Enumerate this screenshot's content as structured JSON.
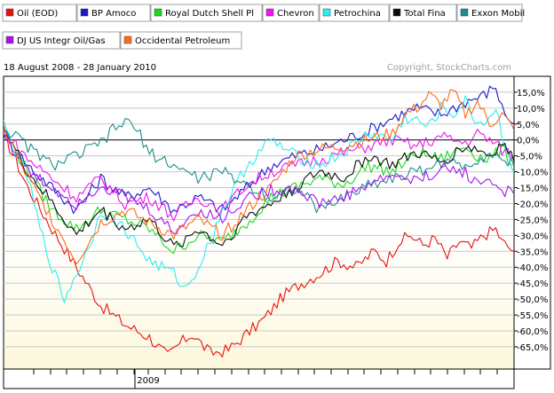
{
  "chart_data": {
    "type": "line",
    "date_range": "18 August 2008 - 28 January 2010",
    "copyright": "Copyright, StockCharts.com",
    "x_label": "2009",
    "y_ticks": [
      "15,0%",
      "10,0%",
      "5,0%",
      "0,0%",
      "-5,0%",
      "-10,0%",
      "-15,0%",
      "-20,0%",
      "-25,0%",
      "-30,0%",
      "-35,0%",
      "-40,0%",
      "-45,0%",
      "-50,0%",
      "-55,0%",
      "-60,0%",
      "-65,0%"
    ],
    "y_values": [
      15,
      10,
      5,
      0,
      -5,
      -10,
      -15,
      -20,
      -25,
      -30,
      -35,
      -40,
      -45,
      -50,
      -55,
      -60,
      -65
    ],
    "ylim": [
      -72,
      20
    ],
    "x_range_weeks": [
      0,
      76
    ],
    "series": [
      {
        "name": "Oil (EOD)",
        "color": "#e8120c",
        "points": [
          [
            0,
            2
          ],
          [
            4,
            -15
          ],
          [
            8,
            -28
          ],
          [
            12,
            -40
          ],
          [
            16,
            -52
          ],
          [
            20,
            -58
          ],
          [
            24,
            -62
          ],
          [
            27,
            -68
          ],
          [
            29,
            -64
          ],
          [
            31,
            -61
          ],
          [
            34,
            -67
          ],
          [
            37,
            -66
          ],
          [
            40,
            -61
          ],
          [
            43,
            -56
          ],
          [
            46,
            -49
          ],
          [
            49,
            -45
          ],
          [
            52,
            -42
          ],
          [
            55,
            -38
          ],
          [
            58,
            -40
          ],
          [
            61,
            -35
          ],
          [
            63,
            -38
          ],
          [
            65,
            -32
          ],
          [
            67,
            -30
          ],
          [
            69,
            -33
          ],
          [
            71,
            -31
          ],
          [
            73,
            -37
          ],
          [
            75,
            -32
          ],
          [
            77,
            -34
          ],
          [
            79,
            -30
          ],
          [
            81,
            -28
          ],
          [
            82,
            -32
          ],
          [
            84,
            -35
          ]
        ]
      },
      {
        "name": "BP Amoco",
        "color": "#1a18c8",
        "points": [
          [
            0,
            2
          ],
          [
            4,
            -8
          ],
          [
            8,
            -15
          ],
          [
            12,
            -22
          ],
          [
            16,
            -12
          ],
          [
            20,
            -18
          ],
          [
            24,
            -15
          ],
          [
            28,
            -22
          ],
          [
            32,
            -18
          ],
          [
            36,
            -22
          ],
          [
            40,
            -15
          ],
          [
            44,
            -8
          ],
          [
            48,
            -5
          ],
          [
            52,
            -3
          ],
          [
            56,
            0
          ],
          [
            60,
            3
          ],
          [
            64,
            7
          ],
          [
            68,
            10
          ],
          [
            72,
            8
          ],
          [
            76,
            12
          ],
          [
            79,
            14
          ],
          [
            81,
            17
          ],
          [
            82,
            10
          ],
          [
            84,
            5
          ]
        ]
      },
      {
        "name": "Royal Dutch Shell Pl",
        "color": "#1ed81e",
        "points": [
          [
            0,
            3
          ],
          [
            4,
            -10
          ],
          [
            8,
            -22
          ],
          [
            12,
            -28
          ],
          [
            16,
            -22
          ],
          [
            20,
            -25
          ],
          [
            24,
            -28
          ],
          [
            28,
            -35
          ],
          [
            32,
            -30
          ],
          [
            36,
            -32
          ],
          [
            40,
            -26
          ],
          [
            44,
            -18
          ],
          [
            48,
            -15
          ],
          [
            52,
            -12
          ],
          [
            56,
            -14
          ],
          [
            60,
            -8
          ],
          [
            64,
            -10
          ],
          [
            68,
            -4
          ],
          [
            72,
            -6
          ],
          [
            76,
            -2
          ],
          [
            78,
            -5
          ],
          [
            80,
            -6
          ],
          [
            82,
            -3
          ],
          [
            84,
            -8
          ]
        ]
      },
      {
        "name": "Chevron",
        "color": "#f012f0",
        "points": [
          [
            0,
            3
          ],
          [
            4,
            -6
          ],
          [
            8,
            -12
          ],
          [
            12,
            -18
          ],
          [
            16,
            -12
          ],
          [
            20,
            -20
          ],
          [
            24,
            -18
          ],
          [
            28,
            -24
          ],
          [
            32,
            -18
          ],
          [
            36,
            -22
          ],
          [
            40,
            -14
          ],
          [
            44,
            -10
          ],
          [
            48,
            -8
          ],
          [
            52,
            -6
          ],
          [
            56,
            -4
          ],
          [
            60,
            -2
          ],
          [
            64,
            0
          ],
          [
            68,
            -2
          ],
          [
            72,
            1
          ],
          [
            76,
            -1
          ],
          [
            78,
            2
          ],
          [
            80,
            0
          ],
          [
            82,
            -3
          ],
          [
            84,
            -5
          ]
        ]
      },
      {
        "name": "Petrochina",
        "color": "#28eef0",
        "points": [
          [
            0,
            5
          ],
          [
            4,
            -12
          ],
          [
            6,
            -28
          ],
          [
            8,
            -40
          ],
          [
            10,
            -50
          ],
          [
            12,
            -42
          ],
          [
            14,
            -34
          ],
          [
            16,
            -22
          ],
          [
            20,
            -28
          ],
          [
            24,
            -38
          ],
          [
            28,
            -42
          ],
          [
            30,
            -47
          ],
          [
            32,
            -40
          ],
          [
            34,
            -32
          ],
          [
            36,
            -22
          ],
          [
            40,
            -8
          ],
          [
            44,
            0
          ],
          [
            48,
            -5
          ],
          [
            52,
            -8
          ],
          [
            56,
            -4
          ],
          [
            60,
            2
          ],
          [
            64,
            0
          ],
          [
            66,
            7
          ],
          [
            68,
            6
          ],
          [
            70,
            4
          ],
          [
            72,
            10
          ],
          [
            74,
            8
          ],
          [
            76,
            12
          ],
          [
            78,
            5
          ],
          [
            80,
            7
          ],
          [
            81,
            10
          ],
          [
            82,
            2
          ],
          [
            84,
            -10
          ]
        ]
      },
      {
        "name": "Total Fina",
        "color": "#0c0c0c",
        "points": [
          [
            0,
            3
          ],
          [
            4,
            -10
          ],
          [
            8,
            -20
          ],
          [
            12,
            -30
          ],
          [
            16,
            -22
          ],
          [
            20,
            -28
          ],
          [
            24,
            -25
          ],
          [
            28,
            -34
          ],
          [
            32,
            -28
          ],
          [
            36,
            -33
          ],
          [
            40,
            -24
          ],
          [
            44,
            -20
          ],
          [
            48,
            -15
          ],
          [
            52,
            -10
          ],
          [
            56,
            -12
          ],
          [
            60,
            -5
          ],
          [
            64,
            -8
          ],
          [
            68,
            -4
          ],
          [
            72,
            -7
          ],
          [
            76,
            -2
          ],
          [
            78,
            -3
          ],
          [
            80,
            -5
          ],
          [
            82,
            -1
          ],
          [
            84,
            -7
          ]
        ]
      },
      {
        "name": "Exxon Mobil",
        "color": "#1e8c8c",
        "points": [
          [
            0,
            4
          ],
          [
            4,
            -2
          ],
          [
            8,
            -8
          ],
          [
            12,
            -5
          ],
          [
            16,
            -1
          ],
          [
            18,
            3
          ],
          [
            20,
            6
          ],
          [
            22,
            3
          ],
          [
            24,
            -4
          ],
          [
            28,
            -8
          ],
          [
            32,
            -12
          ],
          [
            36,
            -10
          ],
          [
            40,
            -14
          ],
          [
            44,
            -18
          ],
          [
            48,
            -15
          ],
          [
            52,
            -22
          ],
          [
            56,
            -18
          ],
          [
            60,
            -14
          ],
          [
            64,
            -12
          ],
          [
            68,
            -10
          ],
          [
            72,
            -7
          ],
          [
            76,
            -8
          ],
          [
            80,
            -4
          ],
          [
            82,
            -6
          ],
          [
            84,
            -8
          ]
        ]
      },
      {
        "name": "DJ US Integr Oil/Gas",
        "color": "#a812f0",
        "points": [
          [
            0,
            2
          ],
          [
            4,
            -10
          ],
          [
            8,
            -15
          ],
          [
            12,
            -20
          ],
          [
            16,
            -14
          ],
          [
            20,
            -18
          ],
          [
            24,
            -22
          ],
          [
            28,
            -29
          ],
          [
            32,
            -22
          ],
          [
            36,
            -25
          ],
          [
            40,
            -18
          ],
          [
            44,
            -16
          ],
          [
            48,
            -15
          ],
          [
            52,
            -20
          ],
          [
            56,
            -18
          ],
          [
            60,
            -14
          ],
          [
            64,
            -11
          ],
          [
            68,
            -13
          ],
          [
            72,
            -9
          ],
          [
            76,
            -10
          ],
          [
            78,
            -14
          ],
          [
            80,
            -12
          ],
          [
            82,
            -16
          ],
          [
            84,
            -17
          ]
        ]
      },
      {
        "name": "Occidental Petroleum",
        "color": "#ff6a14",
        "points": [
          [
            0,
            4
          ],
          [
            4,
            -12
          ],
          [
            8,
            -25
          ],
          [
            12,
            -38
          ],
          [
            16,
            -26
          ],
          [
            20,
            -22
          ],
          [
            24,
            -26
          ],
          [
            28,
            -30
          ],
          [
            32,
            -25
          ],
          [
            36,
            -30
          ],
          [
            40,
            -22
          ],
          [
            44,
            -15
          ],
          [
            48,
            -5
          ],
          [
            52,
            -3
          ],
          [
            56,
            -2
          ],
          [
            60,
            0
          ],
          [
            64,
            2
          ],
          [
            66,
            8
          ],
          [
            68,
            10
          ],
          [
            70,
            14
          ],
          [
            72,
            11
          ],
          [
            74,
            15
          ],
          [
            76,
            8
          ],
          [
            78,
            12
          ],
          [
            80,
            5
          ],
          [
            82,
            8
          ],
          [
            84,
            3
          ]
        ]
      }
    ]
  }
}
